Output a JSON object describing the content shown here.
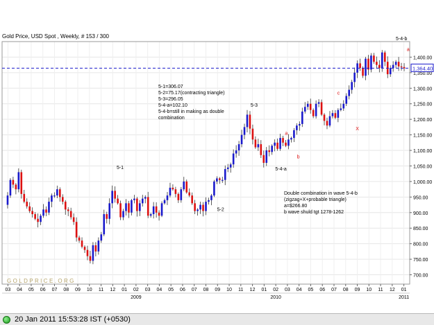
{
  "chart_data": {
    "type": "candlestick",
    "title": "Gold Price, USD Spot , Weekly, # 153 / 300",
    "watermark": "GOLDPRICE.ORG",
    "current_price_label": "1,364.40",
    "current_price": 1364.4,
    "ylim": [
      670,
      1450
    ],
    "y_ticks": [
      "1,400.00",
      "1,350.00",
      "1,300.00",
      "1,250.00",
      "1,200.00",
      "1,150.00",
      "1,100.00",
      "1,050.00",
      "1,000.00",
      "950.00",
      "900.00",
      "850.00",
      "800.00",
      "750.00",
      "700.00"
    ],
    "x_months": [
      "03",
      "04",
      "05",
      "06",
      "07",
      "08",
      "09",
      "10",
      "11",
      "12",
      "01",
      "02",
      "03",
      "04",
      "05",
      "06",
      "07",
      "08",
      "09",
      "10",
      "11",
      "12",
      "01",
      "02",
      "03",
      "04",
      "05",
      "06",
      "07",
      "08",
      "09",
      "10",
      "11",
      "12",
      "01"
    ],
    "x_years": [
      {
        "label": "2009",
        "month_index": 11
      },
      {
        "label": "2010",
        "month_index": 23
      },
      {
        "label": "2011",
        "month_index": 34
      }
    ],
    "colors": {
      "up": "#1a1acc",
      "down": "#dd1111",
      "price_line": "#1a1acc",
      "annotation": "#dd1111",
      "watermark": "#b5a36a"
    },
    "closes": [
      925,
      955,
      1005,
      990,
      975,
      1030,
      960,
      935,
      920,
      905,
      895,
      880,
      870,
      890,
      910,
      900,
      935,
      955,
      955,
      975,
      950,
      935,
      910,
      905,
      885,
      870,
      820,
      810,
      790,
      780,
      760,
      745,
      795,
      775,
      810,
      830,
      895,
      880,
      930,
      970,
      945,
      930,
      885,
      905,
      930,
      900,
      940,
      945,
      905,
      930,
      945,
      950,
      890,
      895,
      920,
      900,
      890,
      930,
      940,
      955,
      980,
      975,
      960,
      940,
      975,
      1000,
      965,
      955,
      930,
      905,
      910,
      925,
      905,
      935,
      940,
      955,
      1000,
      1010,
      1005,
      1005,
      1040,
      1045,
      1055,
      1090,
      1100,
      1120,
      1150,
      1175,
      1215,
      1170,
      1135,
      1110,
      1120,
      1085,
      1060,
      1100,
      1095,
      1115,
      1125,
      1105,
      1140,
      1125,
      1115,
      1135,
      1140,
      1165,
      1180,
      1185,
      1225,
      1240,
      1250,
      1230,
      1210,
      1250,
      1255,
      1215,
      1195,
      1180,
      1210,
      1220,
      1205,
      1230,
      1235,
      1250,
      1275,
      1295,
      1320,
      1350,
      1380,
      1365,
      1340,
      1395,
      1360,
      1405,
      1385,
      1375,
      1365,
      1415,
      1385,
      1345,
      1365,
      1375,
      1385,
      1370,
      1368,
      1364
    ],
    "annotations": {
      "wave_labels": [
        {
          "text": "5-1",
          "x": 2008.95,
          "y": 1040
        },
        {
          "text": "5-2",
          "x": 2009.7,
          "y": 905
        },
        {
          "text": "5-3",
          "x": 2009.95,
          "y": 1240
        },
        {
          "text": "5-4-a",
          "x": 2010.15,
          "y": 1035
        },
        {
          "text": "5-4-b",
          "x": 2011.05,
          "y": 1455
        }
      ],
      "red_labels": [
        {
          "text": "a",
          "x": 2010.19,
          "y": 1150
        },
        {
          "text": "b",
          "x": 2010.28,
          "y": 1075
        },
        {
          "text": "c",
          "x": 2010.58,
          "y": 1280
        },
        {
          "text": "X",
          "x": 2010.72,
          "y": 1165
        },
        {
          "text": "a",
          "x": 2011.1,
          "y": 1420
        }
      ],
      "note1": [
        "5-1=306.07",
        "5-2=75.17(contracting triangle)",
        "5-3=296.05",
        "5-4-a=102.10",
        "5-4-b=still in making as double",
        "combination"
      ],
      "note2": [
        "Double combination in wave 5-4-b",
        "(zigzag+X+probable triangle)",
        "a=$266.80",
        "b wave shuld tgt 1278-1262"
      ]
    }
  },
  "status_bar": {
    "timestamp": "20 Jan 2011 15:53:28 IST (+0530)",
    "indicator_icon": "green-circle-icon"
  }
}
